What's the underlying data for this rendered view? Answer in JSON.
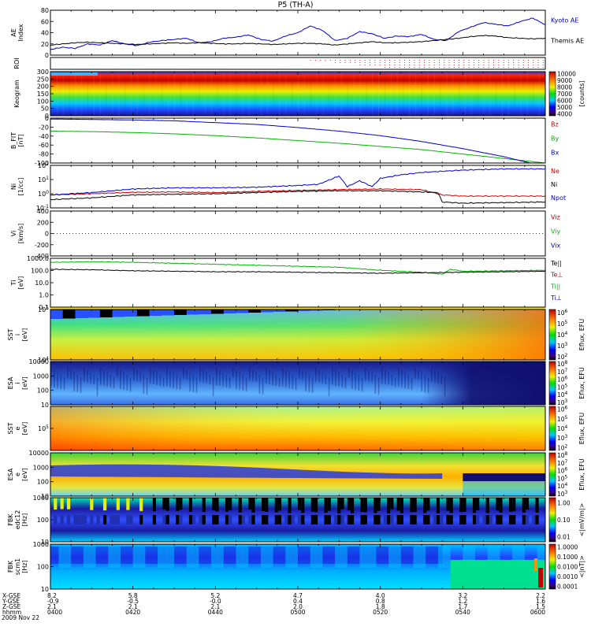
{
  "title": "P5 (TH-A)",
  "chart_data": {
    "type": "line",
    "title": "P5 (TH-A)",
    "panels": [
      {
        "id": "ae",
        "ylabel": "AE Index",
        "ylim": [
          0,
          80
        ],
        "yticks": [
          "0",
          "20",
          "40",
          "60",
          "80"
        ],
        "legend": [
          {
            "name": "Kyoto AE",
            "color": "#0000c8"
          },
          {
            "name": "Themis AE",
            "color": "#000000"
          }
        ],
        "series": [
          {
            "name": "Kyoto AE",
            "color": "#0000c8",
            "x": [
              0,
              3,
              6,
              9,
              12,
              15,
              18,
              21,
              24,
              27,
              30,
              33,
              36,
              39,
              42,
              45,
              48,
              51,
              54,
              57,
              60,
              63,
              66,
              69,
              72,
              75,
              78,
              81,
              84,
              87,
              90,
              93,
              96,
              99,
              102,
              105,
              108,
              111,
              114,
              117,
              120
            ],
            "values": [
              10,
              14,
              12,
              20,
              18,
              26,
              20,
              17,
              23,
              26,
              28,
              30,
              22,
              24,
              30,
              32,
              36,
              28,
              25,
              34,
              40,
              52,
              44,
              26,
              30,
              42,
              38,
              30,
              34,
              33,
              37,
              28,
              26,
              42,
              50,
              58,
              55,
              52,
              60,
              66,
              54
            ]
          },
          {
            "name": "Themis AE",
            "color": "#000000",
            "x": [
              0,
              3,
              6,
              9,
              12,
              15,
              18,
              21,
              24,
              27,
              30,
              33,
              36,
              39,
              42,
              45,
              48,
              51,
              54,
              57,
              60,
              63,
              66,
              69,
              72,
              75,
              78,
              81,
              84,
              87,
              90,
              93,
              96,
              99,
              102,
              105,
              108,
              111,
              114,
              117,
              120
            ],
            "values": [
              18,
              20,
              22,
              23,
              22,
              21,
              20,
              19,
              20,
              21,
              22,
              21,
              22,
              21,
              20,
              20,
              21,
              20,
              19,
              20,
              21,
              21,
              20,
              18,
              20,
              22,
              24,
              22,
              22,
              23,
              24,
              26,
              28,
              30,
              33,
              35,
              34,
              31,
              30,
              29,
              30
            ]
          }
        ]
      },
      {
        "id": "roi",
        "ylabel": "ROI",
        "dots": {
          "start_x": 63,
          "end_x": 120,
          "rows": 4,
          "color": "#c80000"
        }
      },
      {
        "id": "keogram",
        "ylabel": "Keogram",
        "ylim": [
          0,
          300
        ],
        "yticks": [
          "0",
          "50",
          "100",
          "150",
          "200",
          "250",
          "300"
        ],
        "colorbar": {
          "min": 4000,
          "max": 10000,
          "ticks": [
            "4000",
            "5000",
            "6000",
            "7000",
            "8000",
            "9000",
            "10000"
          ],
          "label": "[counts]"
        }
      },
      {
        "id": "bfield",
        "ylabel": "B_FIT [nT]",
        "ylim": [
          -100,
          0
        ],
        "yticks": [
          "-100",
          "-80",
          "-60",
          "-40",
          "-20",
          "0"
        ],
        "legend": [
          {
            "name": "Bz",
            "color": "#c80000"
          },
          {
            "name": "By",
            "color": "#00b400"
          },
          {
            "name": "Bx",
            "color": "#0000c8"
          }
        ],
        "series": [
          {
            "name": "Bz",
            "color": "#c80000",
            "x": [
              0,
              120
            ],
            "values": [
              0,
              0
            ]
          },
          {
            "name": "By",
            "color": "#00b400",
            "x": [
              0,
              10,
              20,
              30,
              40,
              50,
              60,
              70,
              80,
              90,
              100,
              110,
              120
            ],
            "values": [
              -29,
              -30,
              -32,
              -35,
              -39,
              -44,
              -50,
              -56,
              -63,
              -70,
              -80,
              -90,
              -100
            ]
          },
          {
            "name": "Bx",
            "color": "#0000c8",
            "x": [
              0,
              10,
              20,
              30,
              40,
              50,
              60,
              70,
              80,
              90,
              100,
              110,
              120
            ],
            "values": [
              -2,
              -3,
              -4,
              -6,
              -10,
              -14,
              -21,
              -29,
              -39,
              -52,
              -68,
              -86,
              -108
            ]
          }
        ]
      },
      {
        "id": "density",
        "ylabel": "Ni [1/cc]",
        "ylim": [
          -1,
          2.6
        ],
        "yticks": [
          "10^-1",
          "10^0",
          "10^1",
          "10^2"
        ],
        "legend": [
          {
            "name": "Ne",
            "color": "#c80000"
          },
          {
            "name": "Ni",
            "color": "#000000"
          },
          {
            "name": "Npot",
            "color": "#0000c8"
          }
        ],
        "series": [
          {
            "name": "Ne",
            "color": "#c80000",
            "x": [
              0,
              10,
              20,
              30,
              40,
              50,
              60,
              70,
              80,
              90,
              95,
              100,
              110,
              120
            ],
            "values": [
              0.1,
              0.2,
              0.32,
              0.35,
              0.3,
              0.4,
              0.48,
              0.55,
              0.6,
              0.55,
              0.1,
              0.0,
              0.0,
              0.0
            ]
          },
          {
            "name": "Ni",
            "color": "#000000",
            "x": [
              0,
              10,
              20,
              30,
              40,
              50,
              60,
              70,
              80,
              90,
              94,
              95,
              100,
              110,
              120
            ],
            "values": [
              -0.3,
              -0.15,
              0.1,
              0.15,
              0.2,
              0.3,
              0.4,
              0.45,
              0.45,
              0.35,
              0.3,
              -0.5,
              -0.6,
              -0.55,
              -0.5
            ]
          },
          {
            "name": "Npot",
            "color": "#0000c8",
            "x": [
              0,
              10,
              20,
              30,
              40,
              50,
              60,
              65,
              70,
              72,
              75,
              78,
              80,
              85,
              90,
              100,
              110,
              120
            ],
            "values": [
              0.1,
              0.3,
              0.6,
              0.7,
              0.7,
              0.75,
              0.9,
              1.0,
              1.7,
              0.8,
              1.3,
              0.8,
              1.5,
              1.8,
              2.0,
              2.2,
              2.3,
              2.3
            ]
          }
        ]
      },
      {
        "id": "velocity",
        "ylabel": "Vi [km/s]",
        "ylim": [
          -500,
          500
        ],
        "yticks": [
          "-400",
          "-200",
          "0",
          "200",
          "400"
        ],
        "legend": [
          {
            "name": "Viz",
            "color": "#c80000"
          },
          {
            "name": "Viy",
            "color": "#00b400"
          },
          {
            "name": "Vix",
            "color": "#0000c8"
          }
        ]
      },
      {
        "id": "temperature",
        "ylabel": "Ti [eV]",
        "ylim": [
          -1.3,
          3.6
        ],
        "yticks": [
          "0.1",
          "1.0",
          "10.0",
          "100.0",
          "1000.0"
        ],
        "legend": [
          {
            "name": "Te||",
            "color": "#000000"
          },
          {
            "name": "Te⊥",
            "color": "#c80000"
          },
          {
            "name": "Ti||",
            "color": "#00b400"
          },
          {
            "name": "Ti⊥",
            "color": "#0000c8"
          }
        ],
        "series": [
          {
            "name": "Ti",
            "color": "#00b400",
            "x": [
              0,
              10,
              20,
              30,
              40,
              50,
              60,
              70,
              80,
              90,
              95,
              97,
              100,
              110,
              120
            ],
            "values": [
              3.2,
              3.25,
              3.2,
              3.1,
              3.0,
              2.9,
              2.8,
              2.7,
              2.4,
              2.2,
              2.0,
              2.5,
              2.3,
              2.35,
              2.4
            ]
          },
          {
            "name": "Te||",
            "color": "#000000",
            "x": [
              0,
              10,
              20,
              30,
              40,
              50,
              60,
              70,
              80,
              90,
              100,
              110,
              120
            ],
            "values": [
              2.5,
              2.45,
              2.35,
              2.3,
              2.25,
              2.25,
              2.2,
              2.15,
              2.1,
              2.15,
              2.2,
              2.25,
              2.3
            ]
          }
        ]
      },
      {
        "id": "sst_ion",
        "ylabel": "SST i [eV]",
        "yticks": [
          "10^4",
          "10^5"
        ],
        "colorbar": {
          "ticks": [
            "10^2",
            "10^3",
            "10^4",
            "10^5",
            "10^6"
          ],
          "label": "Eflux, EFU"
        }
      },
      {
        "id": "esa_ion",
        "ylabel": "ESA i [eV]",
        "yticks": [
          "10",
          "100",
          "1000",
          "10000"
        ],
        "colorbar": {
          "ticks": [
            "10^3",
            "10^4",
            "10^5",
            "10^6",
            "10^7",
            "10^8"
          ],
          "label": "Eflux, EFU"
        }
      },
      {
        "id": "sst_elec",
        "ylabel": "SST e [eV]",
        "yticks": [
          "10^5"
        ],
        "colorbar": {
          "ticks": [
            "10^2",
            "10^3",
            "10^4",
            "10^5",
            "10^6"
          ],
          "label": "Eflux, EFU"
        }
      },
      {
        "id": "esa_elec",
        "ylabel": "ESA e [eV]",
        "yticks": [
          "10",
          "100",
          "1000",
          "10000"
        ],
        "colorbar": {
          "ticks": [
            "10^3",
            "10^4",
            "10^5",
            "10^6",
            "10^7",
            "10^8"
          ],
          "label": "Eflux, EFU"
        }
      },
      {
        "id": "fbk_edc",
        "ylabel": "FBK edc12 [Hz]",
        "yticks": [
          "10",
          "100",
          "1000"
        ],
        "colorbar": {
          "ticks": [
            "0.01",
            "0.10",
            "1.00"
          ],
          "label": "<|mV/m|>"
        }
      },
      {
        "id": "fbk_scm",
        "ylabel": "FBK scm1 [Hz]",
        "yticks": [
          "10",
          "100",
          "1000"
        ],
        "colorbar": {
          "ticks": [
            "0.0001",
            "0.0010",
            "0.0100",
            "0.1000",
            "1.0000"
          ],
          "label": "<|nT|>"
        }
      }
    ],
    "xaxis": {
      "row_labels": [
        "X-GSE",
        "Y-GSE",
        "Z-GSE",
        "hhmm",
        "2009 Nov 22"
      ],
      "ticks": [
        {
          "x": 0,
          "X": "8.2",
          "Y": "-0.9",
          "Z": "2.1",
          "hhmm": "0400"
        },
        {
          "x": 20,
          "X": "5.8",
          "Y": "-0.5",
          "Z": "2.1",
          "hhmm": "0420"
        },
        {
          "x": 40,
          "X": "5.2",
          "Y": "-0.0",
          "Z": "2.1",
          "hhmm": "0440"
        },
        {
          "x": 60,
          "X": "4.7",
          "Y": "0.4",
          "Z": "2.0",
          "hhmm": "0500"
        },
        {
          "x": 80,
          "X": "4.0",
          "Y": "0.8",
          "Z": "1.8",
          "hhmm": "0520"
        },
        {
          "x": 100,
          "X": "3.2",
          "Y": "1.2",
          "Z": "1.7",
          "hhmm": "0540"
        },
        {
          "x": 120,
          "X": "2.2",
          "Y": "1.6",
          "Z": "1.5",
          "hhmm": "0600"
        }
      ]
    }
  }
}
